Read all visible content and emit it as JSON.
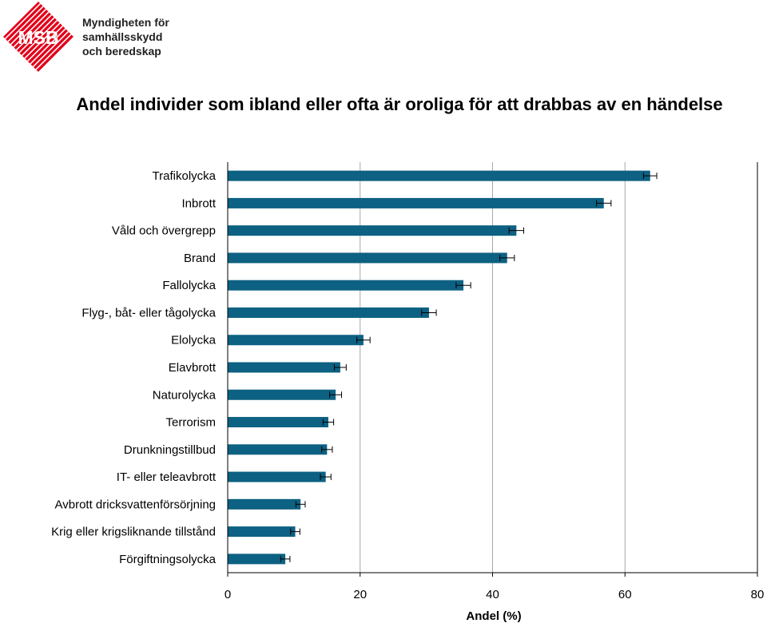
{
  "logo": {
    "mark_text": "MSB",
    "org_lines": [
      "Myndigheten för",
      "samhällsskydd",
      "och beredskap"
    ],
    "color": "#e2001a"
  },
  "chart_data": {
    "type": "bar",
    "orientation": "horizontal",
    "title": "Andel individer som ibland eller ofta är oroliga för att drabbas av en händelse",
    "xlabel": "Andel (%)",
    "ylabel": "",
    "xlim": [
      0,
      80
    ],
    "xticks": [
      0,
      20,
      40,
      60,
      80
    ],
    "grid": true,
    "bar_color": "#0d6182",
    "categories": [
      "Trafikolycka",
      "Inbrott",
      "Våld och övergrepp",
      "Brand",
      "Fallolycka",
      "Flyg-, båt- eller tågolycka",
      "Elolycka",
      "Elavbrott",
      "Naturolycka",
      "Terrorism",
      "Drunkningstillbud",
      "IT- eller teleavbrott",
      "Avbrott dricksvattenförsörjning",
      "Krig eller krigsliknande tillstånd",
      "Förgiftningsolycka"
    ],
    "values": [
      63.8,
      56.8,
      43.6,
      42.2,
      35.6,
      30.4,
      20.5,
      17.0,
      16.3,
      15.2,
      15.0,
      14.8,
      11.0,
      10.2,
      8.7
    ],
    "error": [
      1.0,
      1.1,
      1.1,
      1.1,
      1.1,
      1.1,
      1.0,
      0.9,
      0.9,
      0.8,
      0.8,
      0.8,
      0.7,
      0.7,
      0.7
    ]
  }
}
